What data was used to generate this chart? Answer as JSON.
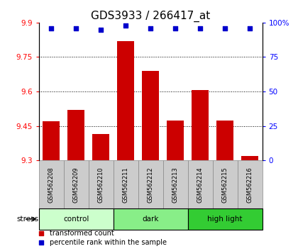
{
  "title": "GDS3933 / 266417_at",
  "samples": [
    "GSM562208",
    "GSM562209",
    "GSM562210",
    "GSM562211",
    "GSM562212",
    "GSM562213",
    "GSM562214",
    "GSM562215",
    "GSM562216"
  ],
  "bar_values": [
    9.47,
    9.52,
    9.415,
    9.82,
    9.69,
    9.475,
    9.605,
    9.475,
    9.32
  ],
  "percentile_values": [
    96,
    96,
    95,
    98,
    96,
    96,
    96,
    96,
    96
  ],
  "bar_color": "#cc0000",
  "dot_color": "#0000cc",
  "ylim_left": [
    9.3,
    9.9
  ],
  "ylim_right": [
    0,
    100
  ],
  "yticks_left": [
    9.3,
    9.45,
    9.6,
    9.75,
    9.9
  ],
  "yticks_right": [
    0,
    25,
    50,
    75,
    100
  ],
  "groups": [
    {
      "label": "control",
      "indices": [
        0,
        1,
        2
      ],
      "color": "#ccffcc"
    },
    {
      "label": "dark",
      "indices": [
        3,
        4,
        5
      ],
      "color": "#88ee88"
    },
    {
      "label": "high light",
      "indices": [
        6,
        7,
        8
      ],
      "color": "#33cc33"
    }
  ],
  "stress_label": "stress",
  "legend_bar_label": "transformed count",
  "legend_dot_label": "percentile rank within the sample",
  "bar_color_legend": "#cc0000",
  "dot_color_legend": "#0000cc",
  "title_fontsize": 11,
  "bar_width": 0.7,
  "sample_box_color": "#cccccc",
  "sample_box_edge": "#888888"
}
